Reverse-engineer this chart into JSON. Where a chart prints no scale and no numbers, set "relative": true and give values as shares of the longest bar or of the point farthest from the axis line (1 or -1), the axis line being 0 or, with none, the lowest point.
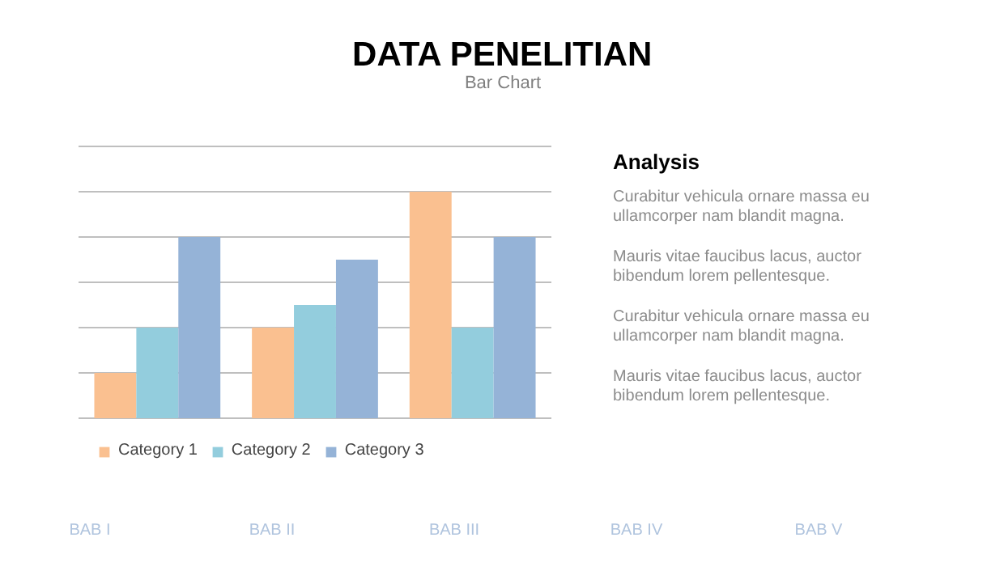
{
  "chart_data": [
    {
      "type": "bar",
      "title": "DATA PENELITIAN",
      "subtitle": "Bar Chart",
      "categories": [
        null,
        null,
        null
      ],
      "relative": true,
      "grid": "y",
      "legend": "bottom",
      "series": [
        {
          "name": "Category 1",
          "color": "#fac090",
          "values": [
            0.2,
            0.4,
            1
          ]
        },
        {
          "name": "Category 2",
          "color": "#93cddd",
          "values": [
            0.4,
            0.5,
            0.4
          ]
        },
        {
          "name": "Category 3",
          "color": "#95b3d7",
          "values": [
            0.8,
            0.7,
            0.8
          ]
        }
      ]
    },
    {
      "type": "other",
      "title": "Analysis",
      "annotations": [
        "Curabitur vehicula  ornare massa eu ullamcorper  nam blandit magna.",
        "Mauris vitae faucibus lacus,  auctor bibendum lorem pellentesque.",
        "Curabitur vehicula  ornare massa eu ullamcorper  nam blandit magna.",
        "Mauris vitae faucibus lacus,  auctor bibendum lorem pellentesque."
      ]
    },
    {
      "type": "other",
      "annotations": [
        "BAB I",
        "BAB II",
        "BAB III",
        "BAB IV",
        "BAB V"
      ]
    }
  ]
}
